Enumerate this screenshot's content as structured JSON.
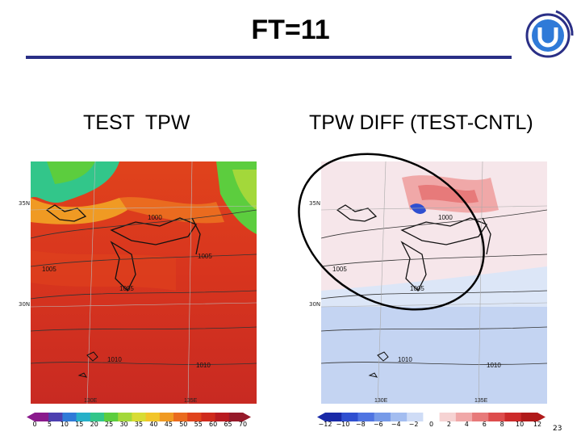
{
  "slide": {
    "title": "FT=11",
    "page_number": "23",
    "accent_color": "#2a2f86"
  },
  "left_panel": {
    "label": "TEST  TPW",
    "lat_labels": [
      "35N",
      "30N"
    ],
    "lon_labels": [
      "130E",
      "135E"
    ],
    "isobar_labels": [
      "1000",
      "1005",
      "1005",
      "1005",
      "1010",
      "1010"
    ],
    "colorbar_ticks": [
      "0",
      "5",
      "10",
      "15",
      "20",
      "25",
      "30",
      "35",
      "40",
      "45",
      "50",
      "55",
      "60",
      "65",
      "70"
    ],
    "colorbar_colors": [
      "#8a1a8c",
      "#4d3fb0",
      "#2f7ad8",
      "#27b0c8",
      "#32c68a",
      "#5ccd3e",
      "#a3d83a",
      "#d8dc34",
      "#f2c52a",
      "#f09a23",
      "#ea6b1f",
      "#e0431c",
      "#cf2a1c",
      "#b81a20",
      "#961a2a"
    ]
  },
  "right_panel": {
    "label": "TPW DIFF (TEST-CNTL)",
    "lat_labels": [
      "35N",
      "30N"
    ],
    "lon_labels": [
      "130E",
      "135E"
    ],
    "isobar_labels": [
      "1000",
      "1005",
      "1005",
      "1010",
      "1010"
    ],
    "colorbar_ticks": [
      "−12",
      "−10",
      "−8",
      "−6",
      "−4",
      "−2",
      "0",
      "2",
      "4",
      "6",
      "8",
      "10",
      "12"
    ],
    "colorbar_colors": [
      "#1a2aa8",
      "#2f4fd0",
      "#4f74e2",
      "#769ae8",
      "#a3bdf0",
      "#cfdcf6",
      "#ffffff",
      "#f6d3d3",
      "#f0a8a8",
      "#e77a7a",
      "#dd4d4d",
      "#cc2a2a",
      "#b01a1a"
    ]
  }
}
